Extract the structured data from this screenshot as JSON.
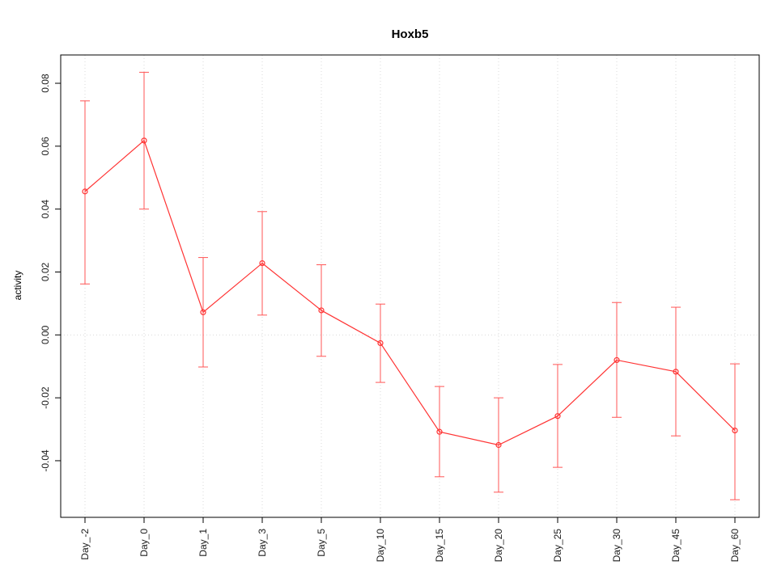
{
  "chart_data": {
    "type": "line",
    "title": "Hoxb5",
    "xlabel": "",
    "ylabel": "activity",
    "categories": [
      "Day_-2",
      "Day_0",
      "Day_1",
      "Day_3",
      "Day_5",
      "Day_10",
      "Day_15",
      "Day_20",
      "Day_25",
      "Day_30",
      "Day_45",
      "Day_60"
    ],
    "values": [
      0.0456,
      0.0618,
      0.0072,
      0.0228,
      0.0078,
      -0.0026,
      -0.0308,
      -0.035,
      -0.0258,
      -0.008,
      -0.0117,
      -0.0304
    ],
    "error_high": [
      0.0744,
      0.0835,
      0.0246,
      0.0392,
      0.0223,
      0.0098,
      -0.0164,
      -0.02,
      -0.0094,
      0.0103,
      0.0088,
      -0.0092
    ],
    "error_low": [
      0.0162,
      0.04,
      -0.0102,
      0.0063,
      -0.0068,
      -0.0151,
      -0.0451,
      -0.05,
      -0.0421,
      -0.0262,
      -0.0321,
      -0.0524
    ],
    "yticks": [
      -0.04,
      -0.02,
      0.0,
      0.02,
      0.04,
      0.06,
      0.08
    ],
    "ylim": [
      -0.058,
      0.089
    ],
    "hline": 0,
    "grid": "dotted-vertical-per-category-and-dotted-hline-at-zero",
    "legend": "none",
    "colors": {
      "series": "#ff3333",
      "error_bar": "#ff5555",
      "grid": "#d9d9d9",
      "axis": "#000000",
      "tick_label": "#1a1a1a"
    }
  }
}
